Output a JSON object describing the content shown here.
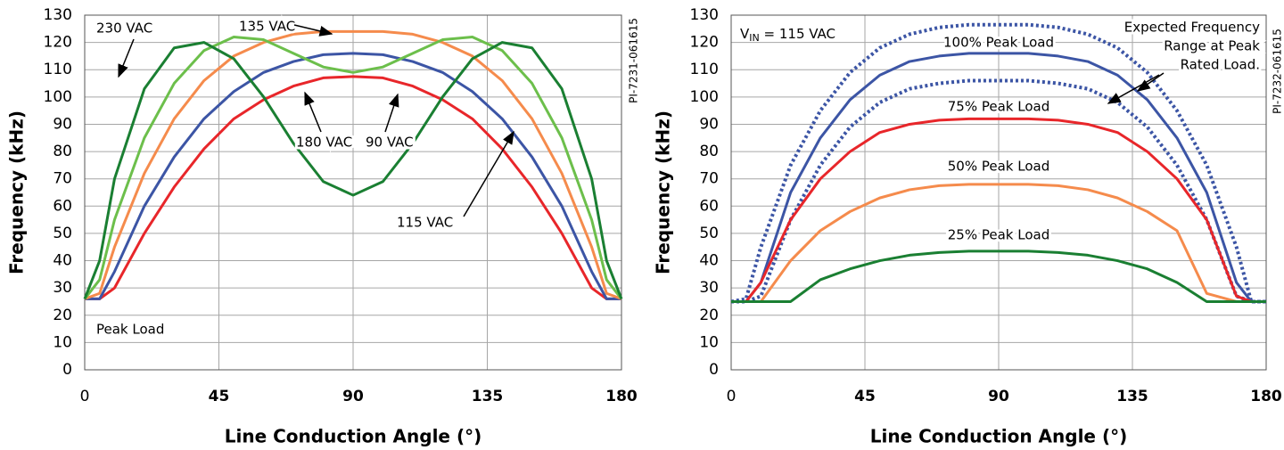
{
  "chart_data": [
    {
      "type": "line",
      "xlabel": "Line Conduction Angle (°)",
      "ylabel": "Frequency (kHz)",
      "xlim": [
        0,
        180
      ],
      "xticks": [
        0,
        45,
        90,
        135,
        180
      ],
      "ylim": [
        0,
        130
      ],
      "yticks": [
        0,
        10,
        20,
        30,
        40,
        50,
        60,
        70,
        80,
        90,
        100,
        110,
        120,
        130
      ],
      "grid": true,
      "annotations": [
        "Peak Load",
        "PI-7231-061615"
      ],
      "x": [
        0,
        5,
        10,
        20,
        30,
        40,
        50,
        60,
        70,
        80,
        90,
        100,
        110,
        120,
        130,
        140,
        150,
        160,
        170,
        175,
        180
      ],
      "series": [
        {
          "name": "90 VAC",
          "color": "#e8262a",
          "values": [
            26,
            26,
            30,
            50,
            67,
            81,
            92,
            99,
            104,
            107,
            107.5,
            107,
            104,
            99,
            92,
            81,
            67,
            50,
            30,
            26,
            26
          ]
        },
        {
          "name": "115 VAC",
          "color": "#3c55a5",
          "values": [
            26,
            26,
            36,
            60,
            78,
            92,
            102,
            109,
            113,
            115.5,
            116,
            115.5,
            113,
            109,
            102,
            92,
            78,
            60,
            36,
            26,
            26
          ]
        },
        {
          "name": "135 VAC",
          "color": "#f58b4c",
          "values": [
            26,
            28,
            45,
            72,
            92,
            106,
            115,
            120,
            123,
            124,
            124,
            124,
            123,
            120,
            115,
            106,
            92,
            72,
            45,
            28,
            26
          ]
        },
        {
          "name": "180 VAC",
          "color": "#6cbf4b",
          "values": [
            26,
            33,
            55,
            85,
            105,
            117,
            122,
            121,
            116,
            111,
            109,
            111,
            116,
            121,
            122,
            117,
            105,
            85,
            55,
            33,
            26
          ]
        },
        {
          "name": "230 VAC",
          "color": "#1a7f32",
          "values": [
            26,
            40,
            70,
            103,
            118,
            120,
            114,
            100,
            83,
            69,
            64,
            69,
            83,
            100,
            114,
            120,
            118,
            103,
            70,
            40,
            26
          ]
        }
      ]
    },
    {
      "type": "line",
      "xlabel": "Line Conduction Angle (°)",
      "ylabel": "Frequency (kHz)",
      "xlim": [
        0,
        180
      ],
      "xticks": [
        0,
        45,
        90,
        135,
        180
      ],
      "ylim": [
        0,
        130
      ],
      "yticks": [
        0,
        10,
        20,
        30,
        40,
        50,
        60,
        70,
        80,
        90,
        100,
        110,
        120,
        130
      ],
      "grid": true,
      "vin": {
        "main": "V",
        "sub": "IN",
        "rest": " = 115 VAC"
      },
      "range_note": [
        "Expected Frequency",
        "Range at Peak",
        "Rated Load."
      ],
      "annotations": [
        "PI-7232-061615"
      ],
      "x": [
        0,
        5,
        10,
        20,
        30,
        40,
        50,
        60,
        70,
        80,
        90,
        100,
        110,
        120,
        130,
        140,
        150,
        160,
        170,
        175,
        180
      ],
      "series": [
        {
          "color": "#3c55a5",
          "dotted": true,
          "values": [
            25,
            26,
            45,
            75,
            95,
            109,
            118,
            123,
            125.5,
            126.5,
            126.5,
            126.5,
            125.5,
            123,
            118,
            109,
            95,
            75,
            45,
            25,
            25
          ]
        },
        {
          "name": "100% Peak Load",
          "color": "#3c55a5",
          "values": [
            25,
            25,
            32,
            65,
            85,
            99,
            108,
            113,
            115,
            116,
            116,
            116,
            115,
            113,
            108,
            99,
            85,
            65,
            32,
            25,
            25
          ]
        },
        {
          "color": "#3c55a5",
          "dotted": true,
          "values": [
            25,
            25,
            27,
            55,
            75,
            89,
            98,
            103,
            105,
            106,
            106,
            106,
            105,
            103,
            98,
            89,
            75,
            55,
            27,
            25,
            25
          ]
        },
        {
          "name": "75% Peak Load",
          "color": "#e8262a",
          "values": [
            25,
            25,
            32,
            55,
            70,
            80,
            87,
            90,
            91.5,
            92,
            92,
            92,
            91.5,
            90,
            87,
            80,
            70,
            55,
            27,
            25,
            25
          ]
        },
        {
          "name": "50% Peak Load",
          "color": "#f58b4c",
          "values": [
            25,
            25,
            25,
            40,
            51,
            58,
            63,
            66,
            67.5,
            68,
            68,
            68,
            67.5,
            66,
            63,
            58,
            51,
            28,
            25,
            25,
            25
          ]
        },
        {
          "name": "25% Peak Load",
          "color": "#1a7f32",
          "values": [
            25,
            25,
            25,
            25,
            33,
            37,
            40,
            42,
            43,
            43.5,
            43.5,
            43.5,
            43,
            42,
            40,
            37,
            32,
            25,
            25,
            25,
            25
          ]
        }
      ]
    }
  ]
}
